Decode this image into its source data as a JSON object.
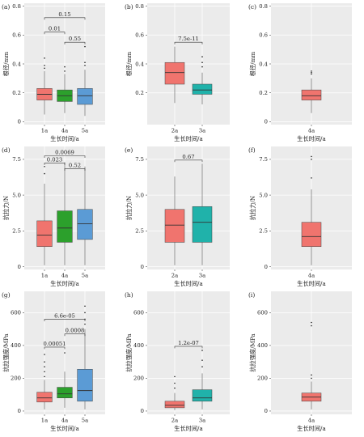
{
  "figure": {
    "colors": {
      "panel_bg": "#ebebeb",
      "grid": "#ffffff",
      "red": "#f0746e",
      "green": "#2ca02c",
      "blue": "#5b9bd5",
      "teal": "#20b2aa"
    }
  },
  "chart_data": [
    {
      "type": "boxplot",
      "letter": "(a)",
      "xlabel": "生长时间/a",
      "ylabel": "根径/mm",
      "ylim": [
        -0.02,
        0.82
      ],
      "yticks": [
        0,
        0.2,
        0.4,
        0.6,
        0.8
      ],
      "ytick_labels": [
        "0",
        "0.2",
        "0.4",
        "0.6",
        "0.8"
      ],
      "categories": [
        "1a",
        "4a",
        "5a"
      ],
      "boxes": [
        {
          "q1": 0.15,
          "median": 0.19,
          "q3": 0.23,
          "whisker_low": 0.05,
          "whisker_high": 0.35,
          "outliers": [
            0.37,
            0.39,
            0.44
          ],
          "color": "red"
        },
        {
          "q1": 0.14,
          "median": 0.18,
          "q3": 0.22,
          "whisker_low": 0.06,
          "whisker_high": 0.33,
          "outliers": [
            0.35,
            0.38
          ],
          "color": "green"
        },
        {
          "q1": 0.12,
          "median": 0.18,
          "q3": 0.23,
          "whisker_low": 0.04,
          "whisker_high": 0.36,
          "outliers": [
            0.39,
            0.41,
            0.52
          ],
          "color": "blue"
        }
      ],
      "comparisons": [
        {
          "pair": [
            0,
            1
          ],
          "label": "0.01",
          "y": 0.62
        },
        {
          "pair": [
            1,
            2
          ],
          "label": "0.55",
          "y": 0.55
        },
        {
          "pair": [
            0,
            2
          ],
          "label": "0.15",
          "y": 0.72
        }
      ]
    },
    {
      "type": "boxplot",
      "letter": "(b)",
      "xlabel": "生长时间/a",
      "ylabel": "根径/mm",
      "ylim": [
        -0.02,
        0.82
      ],
      "yticks": [
        0.2,
        0.4,
        0.6,
        0.8
      ],
      "ytick_labels": [
        "0.2",
        "0.4",
        "0.6",
        "0.8"
      ],
      "categories": [
        "2a",
        "3a"
      ],
      "boxes": [
        {
          "q1": 0.26,
          "median": 0.34,
          "q3": 0.41,
          "whisker_low": 0.13,
          "whisker_high": 0.52,
          "outliers": [],
          "color": "red"
        },
        {
          "q1": 0.19,
          "median": 0.22,
          "q3": 0.26,
          "whisker_low": 0.12,
          "whisker_high": 0.34,
          "outliers": [
            0.38,
            0.41,
            0.45
          ],
          "color": "teal"
        }
      ],
      "comparisons": [
        {
          "pair": [
            0,
            1
          ],
          "label": "7.5e-11",
          "y": 0.55
        }
      ]
    },
    {
      "type": "boxplot",
      "letter": "(c)",
      "xlabel": "生长时间/a",
      "ylabel": "根径/mm",
      "ylim": [
        -0.02,
        0.82
      ],
      "yticks": [
        0,
        0.2,
        0.4,
        0.6,
        0.8
      ],
      "ytick_labels": [
        "0",
        "0.2",
        "0.4",
        "0.6",
        "0.8"
      ],
      "categories": [
        "4a"
      ],
      "boxes": [
        {
          "q1": 0.15,
          "median": 0.18,
          "q3": 0.22,
          "whisker_low": 0.06,
          "whisker_high": 0.3,
          "outliers": [
            0.33,
            0.34,
            0.35
          ],
          "color": "red"
        }
      ],
      "comparisons": []
    },
    {
      "type": "boxplot",
      "letter": "(d)",
      "xlabel": "生长时间/a",
      "ylabel": "抗拉力/N",
      "ylim": [
        -0.2,
        8.4
      ],
      "yticks": [
        0,
        2.5,
        5.0,
        7.5
      ],
      "ytick_labels": [
        "0",
        "2.5",
        "5.0",
        "7.5"
      ],
      "categories": [
        "1a",
        "4a",
        "5a"
      ],
      "boxes": [
        {
          "q1": 1.4,
          "median": 2.2,
          "q3": 3.2,
          "whisker_low": 0.1,
          "whisker_high": 5.8,
          "outliers": [
            6.5,
            7.0
          ],
          "color": "red"
        },
        {
          "q1": 1.7,
          "median": 2.7,
          "q3": 3.9,
          "whisker_low": 0.1,
          "whisker_high": 7.3,
          "outliers": [],
          "color": "green"
        },
        {
          "q1": 1.9,
          "median": 3.0,
          "q3": 4.0,
          "whisker_low": 0.1,
          "whisker_high": 7.0,
          "outliers": [],
          "color": "blue"
        }
      ],
      "comparisons": [
        {
          "pair": [
            0,
            1
          ],
          "label": "0.023",
          "y": 7.25
        },
        {
          "pair": [
            1,
            2
          ],
          "label": "0.52",
          "y": 6.85
        },
        {
          "pair": [
            0,
            2
          ],
          "label": "0.0069",
          "y": 7.75
        }
      ]
    },
    {
      "type": "boxplot",
      "letter": "(e)",
      "xlabel": "生长时间/a",
      "ylabel": "抗拉力/N",
      "ylim": [
        -0.2,
        8.4
      ],
      "yticks": [
        0,
        2.5,
        5.0,
        7.5
      ],
      "ytick_labels": [
        "0",
        "2.5",
        "5.0",
        "7.5"
      ],
      "categories": [
        "2a",
        "3a"
      ],
      "boxes": [
        {
          "q1": 1.7,
          "median": 2.9,
          "q3": 4.0,
          "whisker_low": 0.1,
          "whisker_high": 6.3,
          "outliers": [],
          "color": "red"
        },
        {
          "q1": 1.7,
          "median": 3.1,
          "q3": 4.2,
          "whisker_low": 0.1,
          "whisker_high": 7.2,
          "outliers": [],
          "color": "teal"
        }
      ],
      "comparisons": [
        {
          "pair": [
            0,
            1
          ],
          "label": "0.67",
          "y": 7.45
        }
      ]
    },
    {
      "type": "boxplot",
      "letter": "(f)",
      "xlabel": "生长时间/a",
      "ylabel": "抗拉力/N",
      "ylim": [
        -0.2,
        8.4
      ],
      "yticks": [
        0,
        2.5,
        5.0,
        7.5
      ],
      "ytick_labels": [
        "0",
        "2.5",
        "5.0",
        "7.5"
      ],
      "categories": [
        "4a"
      ],
      "boxes": [
        {
          "q1": 1.4,
          "median": 2.1,
          "q3": 3.1,
          "whisker_low": 0.1,
          "whisker_high": 5.4,
          "outliers": [
            6.2,
            7.5,
            7.7
          ],
          "color": "red"
        }
      ],
      "comparisons": []
    },
    {
      "type": "boxplot",
      "letter": "(g)",
      "xlabel": "生长时间/a",
      "ylabel": "抗拉强度/MPa",
      "ylim": [
        -20,
        730
      ],
      "yticks": [
        0,
        200,
        400,
        600
      ],
      "ytick_labels": [
        "0",
        "200",
        "400",
        "600"
      ],
      "categories": [
        "1a",
        "4a",
        "5a"
      ],
      "boxes": [
        {
          "q1": 55,
          "median": 80,
          "q3": 115,
          "whisker_low": 10,
          "whisker_high": 190,
          "outliers": [
            210,
            240,
            270,
            300,
            345
          ],
          "color": "red"
        },
        {
          "q1": 80,
          "median": 105,
          "q3": 145,
          "whisker_low": 20,
          "whisker_high": 240,
          "outliers": [
            355
          ],
          "color": "green"
        },
        {
          "q1": 60,
          "median": 125,
          "q3": 255,
          "whisker_low": 10,
          "whisker_high": 500,
          "outliers": [
            530,
            560,
            600,
            640
          ],
          "color": "blue"
        }
      ],
      "comparisons": [
        {
          "pair": [
            0,
            1
          ],
          "label": "0.00051",
          "y": 390
        },
        {
          "pair": [
            1,
            2
          ],
          "label": "0.0008",
          "y": 470
        },
        {
          "pair": [
            0,
            2
          ],
          "label": "6.6e-05",
          "y": 560
        }
      ]
    },
    {
      "type": "boxplot",
      "letter": "(h)",
      "xlabel": "生长时间/a",
      "ylabel": "抗拉强度/MPa",
      "ylim": [
        -20,
        730
      ],
      "yticks": [
        0,
        200,
        400,
        600
      ],
      "ytick_labels": [
        "0",
        "200",
        "400",
        "600"
      ],
      "categories": [
        "2a",
        "3a"
      ],
      "boxes": [
        {
          "q1": 20,
          "median": 35,
          "q3": 60,
          "whisker_low": 5,
          "whisker_high": 110,
          "outliers": [
            140,
            170,
            210
          ],
          "color": "red"
        },
        {
          "q1": 60,
          "median": 80,
          "q3": 130,
          "whisker_low": 10,
          "whisker_high": 230,
          "outliers": [
            270,
            310,
            370
          ],
          "color": "teal"
        }
      ],
      "comparisons": [
        {
          "pair": [
            0,
            1
          ],
          "label": "1.2e-07",
          "y": 395
        }
      ]
    },
    {
      "type": "boxplot",
      "letter": "(i)",
      "xlabel": "生长时间/a",
      "ylabel": "抗拉强度/MPa",
      "ylim": [
        -20,
        730
      ],
      "yticks": [
        0,
        200,
        400,
        600
      ],
      "ytick_labels": [
        "0",
        "200",
        "400",
        "600"
      ],
      "categories": [
        "4a"
      ],
      "boxes": [
        {
          "q1": 60,
          "median": 85,
          "q3": 110,
          "whisker_low": 10,
          "whisker_high": 180,
          "outliers": [
            200,
            220,
            520,
            540
          ],
          "color": "red"
        }
      ],
      "comparisons": []
    }
  ]
}
